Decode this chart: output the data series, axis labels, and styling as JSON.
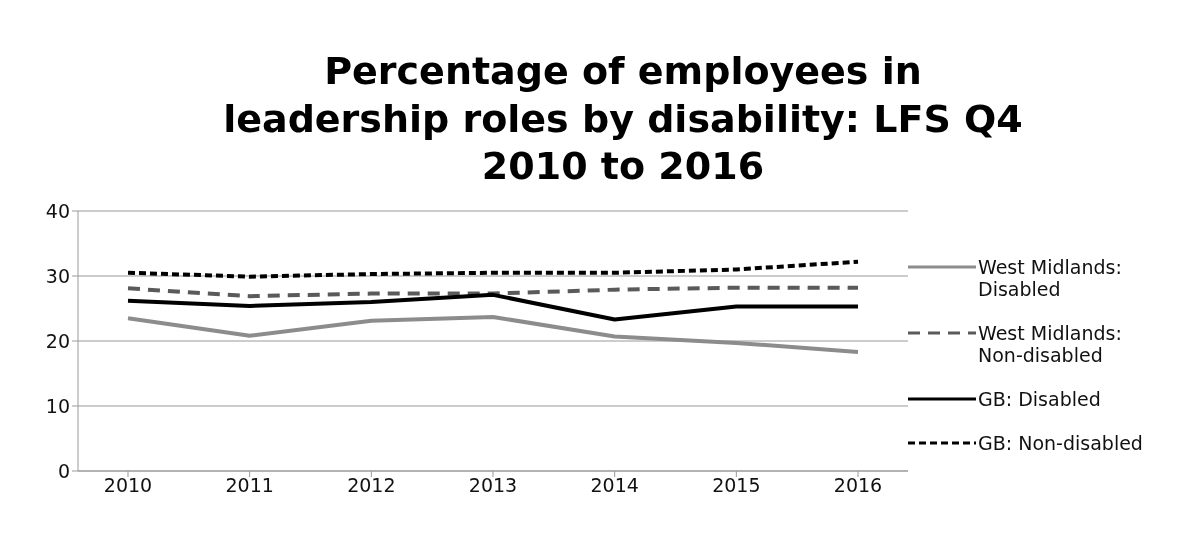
{
  "chart_data": {
    "type": "line",
    "title": "Percentage of employees in leadership roles by disability: LFS Q4 2010 to 2016",
    "categories": [
      "2010",
      "2011",
      "2012",
      "2013",
      "2014",
      "2015",
      "2016"
    ],
    "series": [
      {
        "name": "West Midlands: Disabled",
        "color": "#8c8c8c",
        "line_style": "solid",
        "values": [
          23.5,
          20.8,
          23.1,
          23.7,
          20.7,
          19.7,
          18.3
        ]
      },
      {
        "name": "West Midlands: Non-disabled",
        "color": "#5a5a5a",
        "line_style": "dashed",
        "values": [
          28.1,
          26.9,
          27.3,
          27.3,
          27.9,
          28.2,
          28.2
        ]
      },
      {
        "name": "GB: Disabled",
        "color": "#000000",
        "line_style": "solid",
        "values": [
          26.2,
          25.4,
          26.0,
          27.1,
          23.3,
          25.3,
          25.3
        ]
      },
      {
        "name": "GB: Non-disabled",
        "color": "#000000",
        "line_style": "dotted",
        "values": [
          30.5,
          29.9,
          30.3,
          30.5,
          30.5,
          31.0,
          32.2
        ]
      }
    ],
    "ylim": [
      0,
      40
    ],
    "yticks": [
      0,
      10,
      20,
      30,
      40
    ],
    "grid": "y",
    "legend": "right",
    "marker": "none"
  }
}
